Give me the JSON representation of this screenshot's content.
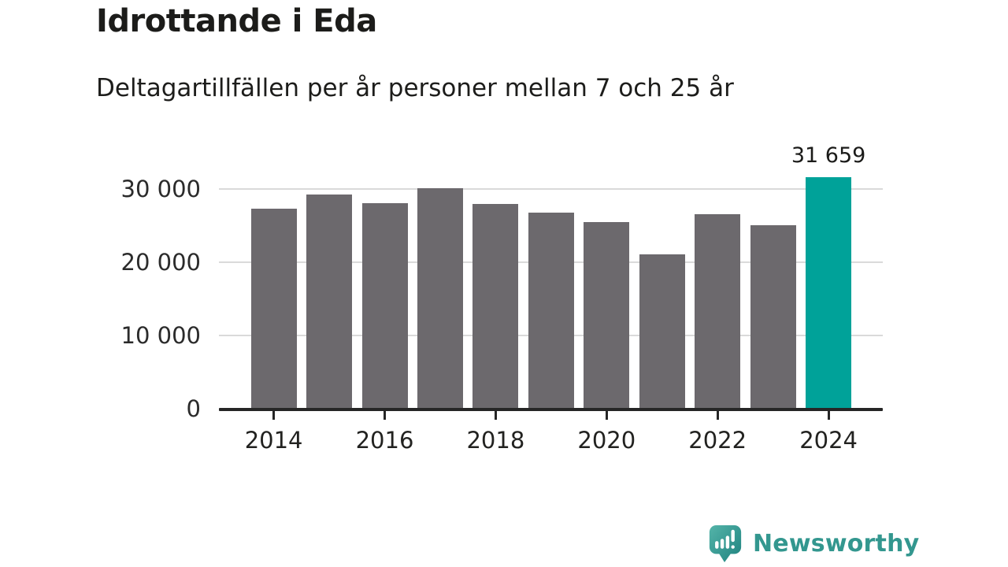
{
  "page": {
    "title": "Idrottande i Eda",
    "subtitle": "Deltagartillfällen per år personer mellan 7 och 25 år"
  },
  "chart_data": {
    "type": "bar",
    "title": "Idrottande i Eda",
    "subtitle": "Deltagartillfällen per år personer mellan 7 och 25 år",
    "categories": [
      "2014",
      "2015",
      "2016",
      "2017",
      "2018",
      "2019",
      "2020",
      "2021",
      "2022",
      "2023",
      "2024"
    ],
    "values": [
      27300,
      29200,
      28100,
      30100,
      28000,
      26800,
      25500,
      21100,
      26600,
      25100,
      31659
    ],
    "highlight": {
      "index": 10,
      "value": 31659,
      "label": "31 659"
    },
    "xtick_labels": [
      "2014",
      "2016",
      "2018",
      "2020",
      "2022",
      "2024"
    ],
    "ytick_values": [
      0,
      10000,
      20000,
      30000
    ],
    "ytick_labels": [
      "0",
      "10 000",
      "20 000",
      "30 000"
    ],
    "ylim": [
      0,
      33000
    ],
    "xlabel": "",
    "ylabel": "",
    "grid": "horizontal-only",
    "legend": "none",
    "colors": {
      "bar": "#6c696d",
      "highlight": "#00a299",
      "gridline": "#dadada",
      "axis": "#262626",
      "tick": "#262626"
    }
  },
  "footer": {
    "brand": "Newsworthy",
    "logo_icon": "newsworthy-speech-bubble-chart-icon",
    "brand_color": "#33978f"
  }
}
